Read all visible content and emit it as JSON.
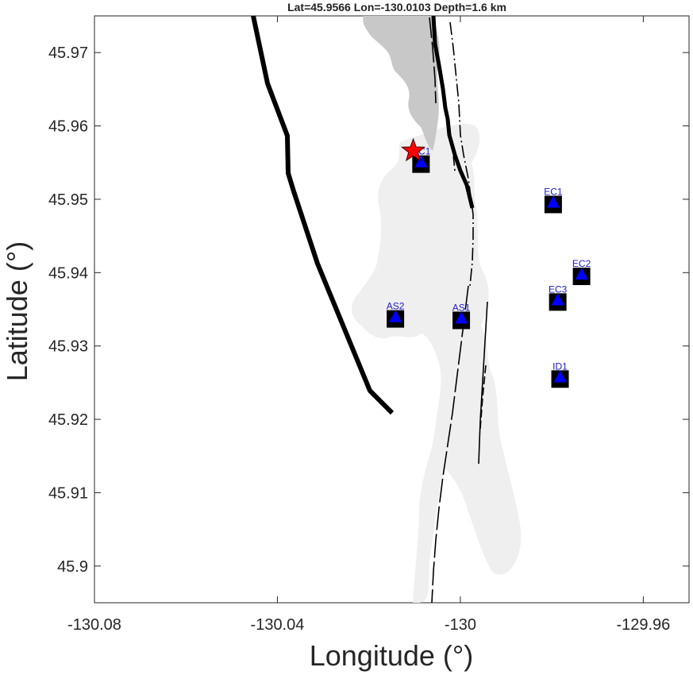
{
  "chart_data": {
    "type": "scatter",
    "title": "Lat=45.9566  Lon=-130.0103  Depth=1.6 km",
    "xlabel": "Longitude (°)",
    "ylabel": "Latitude (°)",
    "xlim": [
      -130.08,
      -129.95
    ],
    "ylim": [
      45.895,
      45.975
    ],
    "x_ticks": [
      -130.08,
      -130.04,
      -130,
      -129.96
    ],
    "x_tick_labels": [
      "-130.08",
      "-130.04",
      "-130",
      "-129.96"
    ],
    "y_ticks": [
      45.9,
      45.91,
      45.92,
      45.93,
      45.94,
      45.95,
      45.96,
      45.97
    ],
    "y_tick_labels": [
      "45.9",
      "45.91",
      "45.92",
      "45.93",
      "45.94",
      "45.95",
      "45.96",
      "45.97"
    ],
    "grid": false,
    "event": {
      "lon": -130.0103,
      "lat": 45.9566,
      "color": "#ff0000"
    },
    "stations": [
      {
        "label": "CC1",
        "lon": -130.0086,
        "lat": 45.9549
      },
      {
        "label": "EC1",
        "lon": -129.9797,
        "lat": 45.9494
      },
      {
        "label": "EC2",
        "lon": -129.9735,
        "lat": 45.9396
      },
      {
        "label": "EC3",
        "lon": -129.9787,
        "lat": 45.9361
      },
      {
        "label": "AS2",
        "lon": -130.0142,
        "lat": 45.9338
      },
      {
        "label": "AS1",
        "lon": -129.9998,
        "lat": 45.9336
      },
      {
        "label": "ID1",
        "lon": -129.9782,
        "lat": 45.9256
      }
    ],
    "caldera_rim_west": [
      [
        -130.0401,
        45.975
      ],
      [
        -130.0376,
        45.9656
      ],
      [
        -130.0316,
        45.9586
      ],
      [
        -130.0311,
        45.9536
      ],
      [
        -130.0291,
        45.9506
      ],
      [
        -130.0236,
        45.9413
      ],
      [
        -130.0106,
        45.9238
      ],
      [
        -130.0051,
        45.9209
      ]
    ],
    "caldera_rim_east": [
      [
        -129.9945,
        45.975
      ],
      [
        -129.9939,
        45.9704
      ],
      [
        -129.9925,
        45.9668
      ],
      [
        -129.991,
        45.9628
      ],
      [
        -129.9892,
        45.9593
      ],
      [
        -129.9882,
        45.9568
      ],
      [
        -129.9867,
        45.9532
      ],
      [
        -129.9846,
        45.9492
      ]
    ],
    "colors": {
      "marker_fill": "#0000ff",
      "marker_box": "#000000",
      "lava_dark": "#c8c8c8",
      "lava_light": "#efefef",
      "rim": "#000000"
    }
  }
}
